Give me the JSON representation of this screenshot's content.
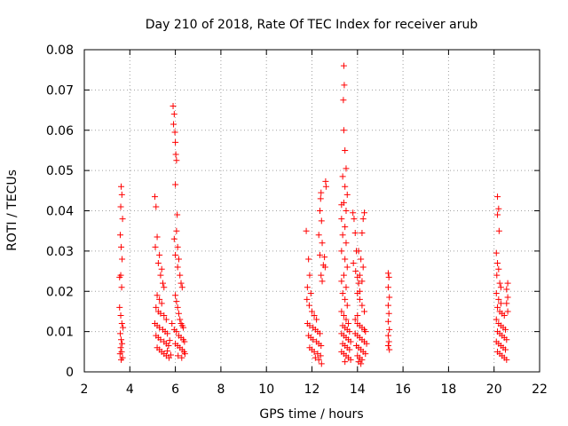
{
  "chart_data": {
    "type": "scatter",
    "title": "Day 210 of 2018, Rate Of TEC Index for receiver arub",
    "xlabel": "GPS time / hours",
    "ylabel": "ROTI / TECUs",
    "xlim": [
      2,
      22
    ],
    "ylim": [
      0,
      0.08
    ],
    "x_ticks": [
      "2",
      "4",
      "6",
      "8",
      "10",
      "12",
      "14",
      "16",
      "18",
      "20",
      "22"
    ],
    "y_ticks": [
      "0",
      "0.01",
      "0.02",
      "0.03",
      "0.04",
      "0.05",
      "0.06",
      "0.07",
      "0.08"
    ],
    "grid": true,
    "marker": "+",
    "color": "#ff0000",
    "series": [
      {
        "name": "ROTI",
        "points": [
          [
            3.55,
            0.0235
          ],
          [
            3.62,
            0.046
          ],
          [
            3.65,
            0.044
          ],
          [
            3.6,
            0.041
          ],
          [
            3.68,
            0.038
          ],
          [
            3.58,
            0.034
          ],
          [
            3.62,
            0.031
          ],
          [
            3.66,
            0.028
          ],
          [
            3.6,
            0.024
          ],
          [
            3.64,
            0.021
          ],
          [
            3.55,
            0.016
          ],
          [
            3.6,
            0.014
          ],
          [
            3.65,
            0.012
          ],
          [
            3.7,
            0.011
          ],
          [
            3.58,
            0.0095
          ],
          [
            3.62,
            0.008
          ],
          [
            3.66,
            0.007
          ],
          [
            3.6,
            0.006
          ],
          [
            3.64,
            0.005
          ],
          [
            3.57,
            0.0045
          ],
          [
            3.68,
            0.0035
          ],
          [
            3.62,
            0.003
          ],
          [
            5.1,
            0.0435
          ],
          [
            5.15,
            0.041
          ],
          [
            5.2,
            0.0335
          ],
          [
            5.12,
            0.031
          ],
          [
            5.3,
            0.029
          ],
          [
            5.25,
            0.027
          ],
          [
            5.4,
            0.0255
          ],
          [
            5.35,
            0.024
          ],
          [
            5.45,
            0.022
          ],
          [
            5.5,
            0.021
          ],
          [
            5.2,
            0.019
          ],
          [
            5.3,
            0.018
          ],
          [
            5.4,
            0.017
          ],
          [
            5.15,
            0.016
          ],
          [
            5.25,
            0.015
          ],
          [
            5.35,
            0.0145
          ],
          [
            5.5,
            0.014
          ],
          [
            5.6,
            0.013
          ],
          [
            5.1,
            0.012
          ],
          [
            5.2,
            0.0115
          ],
          [
            5.3,
            0.011
          ],
          [
            5.45,
            0.0105
          ],
          [
            5.55,
            0.01
          ],
          [
            5.65,
            0.0095
          ],
          [
            5.15,
            0.009
          ],
          [
            5.25,
            0.0085
          ],
          [
            5.35,
            0.008
          ],
          [
            5.5,
            0.0075
          ],
          [
            5.6,
            0.007
          ],
          [
            5.7,
            0.0065
          ],
          [
            5.2,
            0.006
          ],
          [
            5.3,
            0.0055
          ],
          [
            5.4,
            0.005
          ],
          [
            5.5,
            0.0045
          ],
          [
            5.6,
            0.004
          ],
          [
            5.72,
            0.0035
          ],
          [
            5.8,
            0.0042
          ],
          [
            5.65,
            0.0052
          ],
          [
            5.75,
            0.0078
          ],
          [
            5.85,
            0.012
          ],
          [
            5.9,
            0.066
          ],
          [
            5.95,
            0.064
          ],
          [
            5.92,
            0.0615
          ],
          [
            5.98,
            0.0595
          ],
          [
            6.0,
            0.057
          ],
          [
            6.02,
            0.054
          ],
          [
            6.05,
            0.0525
          ],
          [
            6.0,
            0.0465
          ],
          [
            6.08,
            0.039
          ],
          [
            6.05,
            0.035
          ],
          [
            5.95,
            0.033
          ],
          [
            6.1,
            0.031
          ],
          [
            6.0,
            0.029
          ],
          [
            6.15,
            0.028
          ],
          [
            6.1,
            0.026
          ],
          [
            6.2,
            0.024
          ],
          [
            6.25,
            0.022
          ],
          [
            6.3,
            0.021
          ],
          [
            6.0,
            0.019
          ],
          [
            6.05,
            0.0175
          ],
          [
            6.1,
            0.016
          ],
          [
            6.15,
            0.0145
          ],
          [
            6.2,
            0.013
          ],
          [
            6.25,
            0.012
          ],
          [
            6.3,
            0.0115
          ],
          [
            6.35,
            0.011
          ],
          [
            5.95,
            0.0105
          ],
          [
            6.05,
            0.01
          ],
          [
            6.15,
            0.009
          ],
          [
            6.25,
            0.0085
          ],
          [
            6.35,
            0.008
          ],
          [
            6.4,
            0.0075
          ],
          [
            6.0,
            0.007
          ],
          [
            6.1,
            0.0065
          ],
          [
            6.2,
            0.006
          ],
          [
            6.3,
            0.0055
          ],
          [
            6.38,
            0.005
          ],
          [
            6.42,
            0.0045
          ],
          [
            6.12,
            0.004
          ],
          [
            6.28,
            0.0035
          ],
          [
            11.75,
            0.035
          ],
          [
            11.85,
            0.028
          ],
          [
            11.9,
            0.024
          ],
          [
            11.8,
            0.021
          ],
          [
            11.95,
            0.0195
          ],
          [
            11.78,
            0.018
          ],
          [
            11.88,
            0.0165
          ],
          [
            12.0,
            0.015
          ],
          [
            12.1,
            0.014
          ],
          [
            12.2,
            0.013
          ],
          [
            11.8,
            0.012
          ],
          [
            11.9,
            0.0115
          ],
          [
            12.05,
            0.011
          ],
          [
            12.15,
            0.0105
          ],
          [
            12.25,
            0.01
          ],
          [
            12.35,
            0.0095
          ],
          [
            11.85,
            0.009
          ],
          [
            11.95,
            0.0085
          ],
          [
            12.05,
            0.008
          ],
          [
            12.2,
            0.0075
          ],
          [
            12.3,
            0.007
          ],
          [
            12.4,
            0.0065
          ],
          [
            11.9,
            0.006
          ],
          [
            12.0,
            0.0055
          ],
          [
            12.1,
            0.005
          ],
          [
            12.25,
            0.0045
          ],
          [
            12.38,
            0.004
          ],
          [
            12.15,
            0.0035
          ],
          [
            12.3,
            0.003
          ],
          [
            12.42,
            0.002
          ],
          [
            12.4,
            0.0445
          ],
          [
            12.38,
            0.043
          ],
          [
            12.35,
            0.04
          ],
          [
            12.42,
            0.0375
          ],
          [
            12.3,
            0.034
          ],
          [
            12.45,
            0.032
          ],
          [
            12.35,
            0.029
          ],
          [
            12.5,
            0.0265
          ],
          [
            12.4,
            0.024
          ],
          [
            12.45,
            0.0225
          ],
          [
            12.6,
            0.0473
          ],
          [
            12.62,
            0.046
          ],
          [
            12.55,
            0.0285
          ],
          [
            12.58,
            0.026
          ],
          [
            13.3,
            0.0415
          ],
          [
            13.4,
            0.076
          ],
          [
            13.42,
            0.0712
          ],
          [
            13.38,
            0.0675
          ],
          [
            13.4,
            0.06
          ],
          [
            13.45,
            0.055
          ],
          [
            13.5,
            0.0505
          ],
          [
            13.35,
            0.0485
          ],
          [
            13.45,
            0.046
          ],
          [
            13.55,
            0.044
          ],
          [
            13.4,
            0.042
          ],
          [
            13.5,
            0.04
          ],
          [
            13.3,
            0.038
          ],
          [
            13.45,
            0.036
          ],
          [
            13.35,
            0.034
          ],
          [
            13.5,
            0.032
          ],
          [
            13.3,
            0.03
          ],
          [
            13.45,
            0.028
          ],
          [
            13.55,
            0.026
          ],
          [
            13.4,
            0.024
          ],
          [
            13.3,
            0.0225
          ],
          [
            13.5,
            0.021
          ],
          [
            13.35,
            0.0195
          ],
          [
            13.45,
            0.018
          ],
          [
            13.55,
            0.0165
          ],
          [
            13.3,
            0.015
          ],
          [
            13.4,
            0.014
          ],
          [
            13.5,
            0.013
          ],
          [
            13.6,
            0.012
          ],
          [
            13.35,
            0.0115
          ],
          [
            13.45,
            0.011
          ],
          [
            13.55,
            0.0105
          ],
          [
            13.65,
            0.01
          ],
          [
            13.3,
            0.0095
          ],
          [
            13.4,
            0.009
          ],
          [
            13.5,
            0.0085
          ],
          [
            13.6,
            0.008
          ],
          [
            13.7,
            0.0075
          ],
          [
            13.35,
            0.007
          ],
          [
            13.45,
            0.0065
          ],
          [
            13.55,
            0.006
          ],
          [
            13.65,
            0.0055
          ],
          [
            13.3,
            0.005
          ],
          [
            13.4,
            0.0045
          ],
          [
            13.5,
            0.004
          ],
          [
            13.6,
            0.0035
          ],
          [
            13.7,
            0.003
          ],
          [
            13.45,
            0.0025
          ],
          [
            13.8,
            0.0395
          ],
          [
            13.85,
            0.038
          ],
          [
            13.9,
            0.0345
          ],
          [
            13.95,
            0.03
          ],
          [
            13.82,
            0.027
          ],
          [
            13.92,
            0.025
          ],
          [
            14.0,
            0.0235
          ],
          [
            14.05,
            0.022
          ],
          [
            14.1,
            0.02
          ],
          [
            14.3,
            0.0395
          ],
          [
            14.25,
            0.038
          ],
          [
            14.2,
            0.0345
          ],
          [
            14.05,
            0.03
          ],
          [
            14.15,
            0.028
          ],
          [
            14.25,
            0.026
          ],
          [
            14.1,
            0.024
          ],
          [
            14.2,
            0.0225
          ],
          [
            14.0,
            0.0195
          ],
          [
            14.1,
            0.018
          ],
          [
            14.2,
            0.0165
          ],
          [
            14.3,
            0.015
          ],
          [
            14.0,
            0.014
          ],
          [
            13.9,
            0.013
          ],
          [
            14.0,
            0.012
          ],
          [
            14.1,
            0.0115
          ],
          [
            14.2,
            0.011
          ],
          [
            14.3,
            0.0105
          ],
          [
            14.35,
            0.01
          ],
          [
            13.9,
            0.0095
          ],
          [
            14.0,
            0.009
          ],
          [
            14.1,
            0.0085
          ],
          [
            14.2,
            0.008
          ],
          [
            14.3,
            0.0075
          ],
          [
            14.4,
            0.007
          ],
          [
            13.95,
            0.0065
          ],
          [
            14.05,
            0.006
          ],
          [
            14.15,
            0.0055
          ],
          [
            14.25,
            0.005
          ],
          [
            14.35,
            0.0045
          ],
          [
            14.0,
            0.004
          ],
          [
            14.1,
            0.0035
          ],
          [
            14.2,
            0.003
          ],
          [
            14.05,
            0.0025
          ],
          [
            14.15,
            0.002
          ],
          [
            15.35,
            0.0245
          ],
          [
            15.38,
            0.0235
          ],
          [
            15.35,
            0.021
          ],
          [
            15.4,
            0.0185
          ],
          [
            15.35,
            0.0165
          ],
          [
            15.38,
            0.0145
          ],
          [
            15.35,
            0.0125
          ],
          [
            15.4,
            0.0105
          ],
          [
            15.35,
            0.009
          ],
          [
            15.38,
            0.0075
          ],
          [
            15.35,
            0.0065
          ],
          [
            15.4,
            0.0055
          ],
          [
            20.15,
            0.0435
          ],
          [
            20.2,
            0.0405
          ],
          [
            20.15,
            0.039
          ],
          [
            20.22,
            0.035
          ],
          [
            20.1,
            0.0295
          ],
          [
            20.15,
            0.027
          ],
          [
            20.2,
            0.0255
          ],
          [
            20.12,
            0.024
          ],
          [
            20.25,
            0.022
          ],
          [
            20.3,
            0.021
          ],
          [
            20.1,
            0.0195
          ],
          [
            20.2,
            0.018
          ],
          [
            20.3,
            0.017
          ],
          [
            20.15,
            0.016
          ],
          [
            20.25,
            0.015
          ],
          [
            20.35,
            0.0145
          ],
          [
            20.45,
            0.014
          ],
          [
            20.1,
            0.013
          ],
          [
            20.2,
            0.012
          ],
          [
            20.3,
            0.0115
          ],
          [
            20.4,
            0.011
          ],
          [
            20.5,
            0.0105
          ],
          [
            20.15,
            0.01
          ],
          [
            20.25,
            0.0095
          ],
          [
            20.35,
            0.009
          ],
          [
            20.45,
            0.0085
          ],
          [
            20.55,
            0.008
          ],
          [
            20.1,
            0.0075
          ],
          [
            20.2,
            0.007
          ],
          [
            20.3,
            0.0065
          ],
          [
            20.4,
            0.006
          ],
          [
            20.5,
            0.0055
          ],
          [
            20.15,
            0.005
          ],
          [
            20.25,
            0.0045
          ],
          [
            20.35,
            0.004
          ],
          [
            20.45,
            0.0035
          ],
          [
            20.55,
            0.003
          ],
          [
            20.6,
            0.022
          ],
          [
            20.55,
            0.0205
          ],
          [
            20.6,
            0.0185
          ],
          [
            20.55,
            0.017
          ],
          [
            20.6,
            0.015
          ]
        ]
      }
    ]
  }
}
